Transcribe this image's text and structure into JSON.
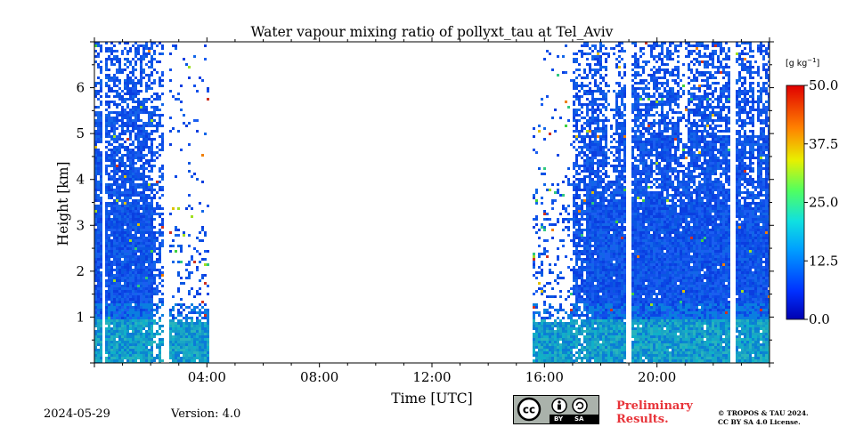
{
  "chart_data": {
    "type": "heatmap",
    "title": "Water vapour mixing ratio of pollyxt_tau at Tel_Aviv",
    "xlabel": "Time [UTC]",
    "ylabel": "Height [km]",
    "xlim_hours": [
      0,
      24
    ],
    "ylim_km": [
      0,
      7
    ],
    "x_ticks": [
      "04:00",
      "08:00",
      "12:00",
      "16:00",
      "20:00"
    ],
    "y_ticks": [
      "1",
      "2",
      "3",
      "4",
      "5",
      "6"
    ],
    "colorbar": {
      "unit_label": "[g kg",
      "unit_exp": "−1",
      "unit_close": "]",
      "min": 0.0,
      "max": 50.0,
      "ticks": [
        "50.0",
        "37.5",
        "25.0",
        "12.5",
        "0.0"
      ],
      "colormap": "jet"
    },
    "data_segments": [
      {
        "start_hour": 0.0,
        "end_hour": 2.5,
        "top_km": 7.0,
        "note": "dense moist profile, 0.05-0.15 below 1 km"
      },
      {
        "start_hour": 2.5,
        "end_hour": 4.0,
        "top_km": 7.0,
        "note": "sparse, filled below ~1 km"
      },
      {
        "start_hour": 15.5,
        "end_hour": 17.0,
        "top_km": 7.0,
        "note": "sparse noisy upper, filled below 1 km"
      },
      {
        "start_hour": 17.0,
        "end_hour": 24.0,
        "top_km": 7.0,
        "note": "dense, gaps near 18.9h and 22.6h"
      }
    ],
    "grid": false
  },
  "footer": {
    "date": "2024-05-29",
    "version": "Version: 4.0",
    "preliminary_line1": "Preliminary",
    "preliminary_line2": "Results.",
    "copyright_line1": "© TROPOS & TAU 2024.",
    "copyright_line2": "CC BY SA 4.0 License.",
    "license_badge": {
      "by": "BY",
      "sa": "SA",
      "icon": "creative-commons-icon"
    }
  }
}
